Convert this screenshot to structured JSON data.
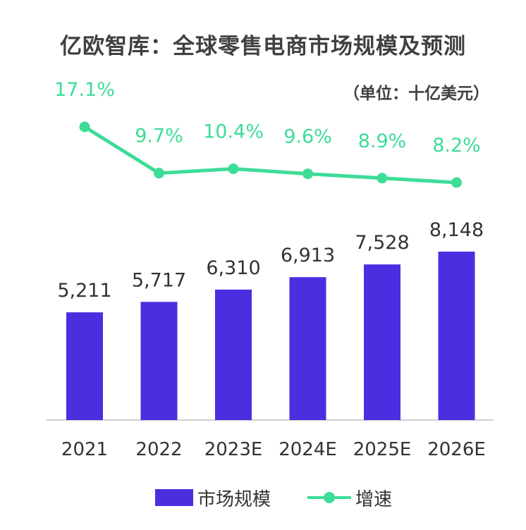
{
  "header": {
    "title": "亿欧智库：全球零售电商市场规模及预测",
    "unit": "（单位：十亿美元）"
  },
  "legend": {
    "bar_label": "市场规模",
    "line_label": "增速"
  },
  "colors": {
    "bar": "#4A2FE0",
    "line": "#3DDC97",
    "text": "#333333",
    "axis": "#BFBFBF"
  },
  "chart_data": {
    "type": "bar+line",
    "categories": [
      "2021",
      "2022",
      "2023E",
      "2024E",
      "2025E",
      "2026E"
    ],
    "series": [
      {
        "name": "市场规模",
        "type": "bar",
        "values": [
          5211,
          5717,
          6310,
          6913,
          7528,
          8148
        ],
        "labels": [
          "5,211",
          "5,717",
          "6,310",
          "6,913",
          "7,528",
          "8,148"
        ]
      },
      {
        "name": "增速",
        "type": "line",
        "values": [
          17.1,
          9.7,
          10.4,
          9.6,
          8.9,
          8.2
        ],
        "labels": [
          "17.1%",
          "9.7%",
          "10.4%",
          "9.6%",
          "8.9%",
          "8.2%"
        ]
      }
    ],
    "title": "亿欧智库：全球零售电商市场规模及预测",
    "unit": "（单位：十亿美元）",
    "grid": false,
    "legend_position": "bottom"
  }
}
